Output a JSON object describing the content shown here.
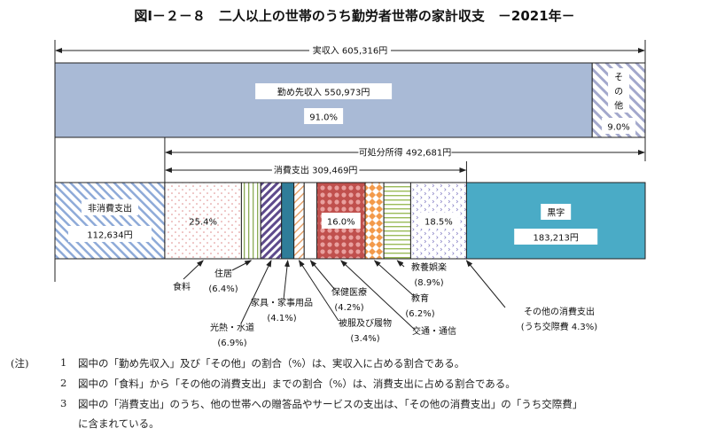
{
  "title": "図Ⅰ－２－８　二人以上の世帯のうち勤労者世帯の家計収支　－2021年－",
  "income": {
    "label": "実収入 605,316円",
    "total": 605316,
    "segments": [
      {
        "key": "work",
        "label": "勤め先収入 550,973円",
        "value": 550973,
        "pct": "91.0%",
        "color": "#a9bad6"
      },
      {
        "key": "other",
        "label": "その他",
        "value": 54343,
        "pct": "9.0%",
        "color": "#9aa3c7"
      }
    ]
  },
  "disposable": {
    "label": "可処分所得 492,681円",
    "value": 492681
  },
  "consumption": {
    "label": "消費支出 309,469円",
    "value": 309469
  },
  "outgo": {
    "non_consumption": {
      "label": "非消費支出",
      "amount": "112,634円",
      "value": 112634,
      "color": "#8eaad8"
    },
    "surplus": {
      "label": "黒字",
      "amount": "183,213円",
      "value": 183213,
      "color": "#4aabc6"
    },
    "categories": [
      {
        "key": "food",
        "name": "食料",
        "pct": 25.4,
        "pct_label": "25.4%",
        "sub": ""
      },
      {
        "key": "housing",
        "name": "住居",
        "pct": 6.4,
        "pct_label": "",
        "sub": "(6.4%)"
      },
      {
        "key": "utilities",
        "name": "光熱・水道",
        "pct": 6.9,
        "pct_label": "",
        "sub": "(6.9%)"
      },
      {
        "key": "furniture",
        "name": "家具・家事用品",
        "pct": 4.1,
        "pct_label": "",
        "sub": "(4.1%)"
      },
      {
        "key": "clothing",
        "name": "被服及び履物",
        "pct": 3.4,
        "pct_label": "",
        "sub": "(3.4%)"
      },
      {
        "key": "health",
        "name": "保健医療",
        "pct": 4.2,
        "pct_label": "",
        "sub": "(4.2%)"
      },
      {
        "key": "transport",
        "name": "交通・通信",
        "pct": 16.0,
        "pct_label": "16.0%",
        "sub": ""
      },
      {
        "key": "education",
        "name": "教育",
        "pct": 6.2,
        "pct_label": "",
        "sub": "(6.2%)"
      },
      {
        "key": "culture",
        "name": "教養娯楽",
        "pct": 8.9,
        "pct_label": "",
        "sub": "(8.9%)"
      },
      {
        "key": "misc",
        "name": "その他の消費支出",
        "pct": 18.5,
        "pct_label": "18.5%",
        "sub": "(うち交際費 4.3%)"
      }
    ]
  },
  "notes": {
    "prefix": "(注)",
    "items": [
      {
        "num": "1",
        "text": "図中の「勤め先収入」及び「その他」の割合（%）は、実収入に占める割合である。"
      },
      {
        "num": "2",
        "text": "図中の「食料」から「その他の消費支出」までの割合（%）は、消費支出に占める割合である。"
      },
      {
        "num": "3",
        "text": "図中の「消費支出」のうち、他の世帯への贈答品やサービスの支出は、「その他の消費支出」の「うち交際費」"
      },
      {
        "num": "",
        "text": "に含まれている。"
      }
    ]
  }
}
